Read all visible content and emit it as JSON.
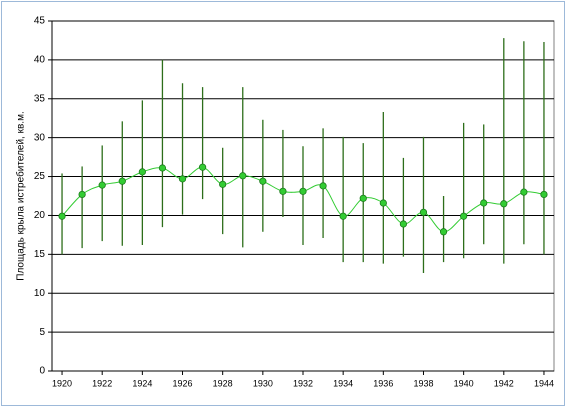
{
  "chart_data": {
    "type": "line-errorbar",
    "y_label": "Площадь крыла истребителей, кв.м.",
    "x": [
      1920,
      1921,
      1922,
      1923,
      1924,
      1925,
      1926,
      1927,
      1928,
      1929,
      1930,
      1931,
      1932,
      1933,
      1934,
      1935,
      1936,
      1937,
      1938,
      1939,
      1940,
      1941,
      1942,
      1943,
      1944
    ],
    "values": [
      19.9,
      22.7,
      23.9,
      24.4,
      25.6,
      26.1,
      24.7,
      26.2,
      24.0,
      25.1,
      24.4,
      23.1,
      23.1,
      23.8,
      19.9,
      22.2,
      21.6,
      18.9,
      20.4,
      17.9,
      19.9,
      21.6,
      21.5,
      23.0,
      22.7
    ],
    "high": [
      25.4,
      26.3,
      29.0,
      32.1,
      34.8,
      40.0,
      37.0,
      36.5,
      28.7,
      36.5,
      32.3,
      31.0,
      28.9,
      31.2,
      30.1,
      29.3,
      33.3,
      27.4,
      30.1,
      22.5,
      31.9,
      31.7,
      42.8,
      42.4,
      42.3
    ],
    "low": [
      15.0,
      15.8,
      16.7,
      16.1,
      16.2,
      18.5,
      20.1,
      22.1,
      17.6,
      15.9,
      17.9,
      19.8,
      16.2,
      17.1,
      14.0,
      14.0,
      13.8,
      14.7,
      12.6,
      14.0,
      14.5,
      16.3,
      13.8,
      16.3,
      15.0
    ],
    "color": "#33cc33",
    "bar_color": "#2d6e1a",
    "xlim": [
      1919.5,
      1944.5
    ],
    "xticks": [
      1920,
      1922,
      1924,
      1926,
      1928,
      1930,
      1932,
      1934,
      1936,
      1938,
      1940,
      1942,
      1944
    ],
    "ylim": [
      0,
      45
    ],
    "yticks": [
      0,
      5,
      10,
      15,
      20,
      25,
      30,
      35,
      40,
      45
    ],
    "grid": true
  }
}
